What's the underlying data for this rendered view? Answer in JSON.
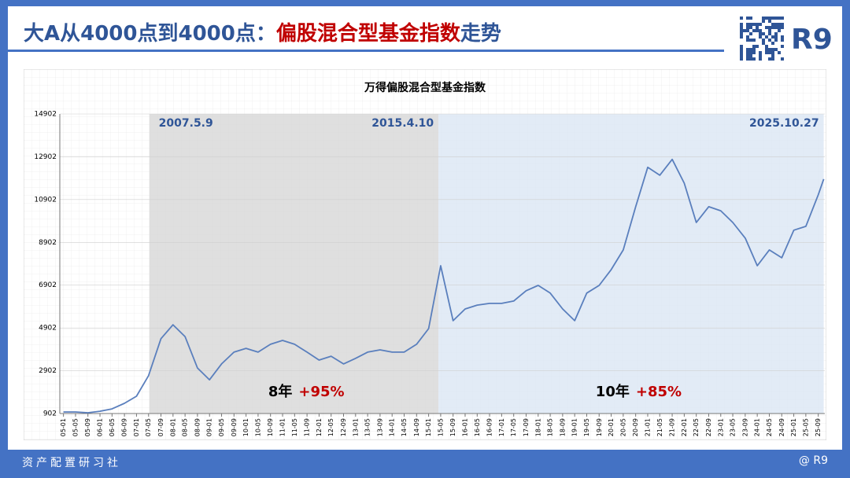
{
  "header": {
    "title_parts": [
      "大A从4000点到4000点：",
      "偏股混合型基金指数",
      "走势"
    ],
    "logo": "R9"
  },
  "footer": {
    "left": "资产配置研习社",
    "right": "@ R9"
  },
  "chart_data": {
    "type": "line",
    "title": "万得偏股混合型基金指数",
    "color": "#5a7fbd",
    "grid": true,
    "x": [
      2005,
      2005.33,
      2005.67,
      2006,
      2006.33,
      2006.67,
      2007,
      2007.33,
      2007.67,
      2008,
      2008.33,
      2008.67,
      2009,
      2009.33,
      2009.67,
      2010,
      2010.33,
      2010.67,
      2011,
      2011.33,
      2011.67,
      2012,
      2012.33,
      2012.67,
      2013,
      2013.33,
      2013.67,
      2014,
      2014.33,
      2014.67,
      2015,
      2015.33,
      2015.67,
      2016,
      2016.33,
      2016.67,
      2017,
      2017.33,
      2017.67,
      2018,
      2018.33,
      2018.67,
      2019,
      2019.33,
      2019.67,
      2020,
      2020.33,
      2020.67,
      2021,
      2021.33,
      2021.67,
      2022,
      2022.33,
      2022.67,
      2023,
      2023.33,
      2023.67,
      2024,
      2024.33,
      2024.67,
      2025,
      2025.33,
      2025.67,
      2025.82
    ],
    "values": [
      975,
      975,
      940,
      1010,
      1120,
      1380,
      1710,
      2670,
      4400,
      5050,
      4500,
      3030,
      2480,
      3220,
      3770,
      3950,
      3770,
      4140,
      4320,
      4140,
      3770,
      3400,
      3580,
      3220,
      3480,
      3770,
      3880,
      3770,
      3770,
      4140,
      4870,
      7810,
      5240,
      5790,
      5970,
      6050,
      6050,
      6160,
      6640,
      6890,
      6530,
      5790,
      5240,
      6530,
      6890,
      7630,
      8550,
      10570,
      12410,
      12040,
      12780,
      11670,
      9830,
      10570,
      10380,
      9830,
      9100,
      7810,
      8550,
      8180,
      9470,
      9650,
      11120,
      11860
    ],
    "xlim": [
      2004.9,
      2025.85
    ],
    "xticks": [
      {
        "value": 2005,
        "label": "05-01"
      },
      {
        "value": 2005.33,
        "label": "05-05"
      },
      {
        "value": 2005.67,
        "label": "05-09"
      },
      {
        "value": 2006,
        "label": "06-01"
      },
      {
        "value": 2006.33,
        "label": "06-05"
      },
      {
        "value": 2006.67,
        "label": "06-09"
      },
      {
        "value": 2007,
        "label": "07-01"
      },
      {
        "value": 2007.33,
        "label": "07-05"
      },
      {
        "value": 2007.67,
        "label": "07-09"
      },
      {
        "value": 2008,
        "label": "08-01"
      },
      {
        "value": 2008.33,
        "label": "08-05"
      },
      {
        "value": 2008.67,
        "label": "08-09"
      },
      {
        "value": 2009,
        "label": "09-01"
      },
      {
        "value": 2009.33,
        "label": "09-05"
      },
      {
        "value": 2009.67,
        "label": "09-09"
      },
      {
        "value": 2010,
        "label": "10-01"
      },
      {
        "value": 2010.33,
        "label": "10-05"
      },
      {
        "value": 2010.67,
        "label": "10-09"
      },
      {
        "value": 2011,
        "label": "11-01"
      },
      {
        "value": 2011.33,
        "label": "11-05"
      },
      {
        "value": 2011.67,
        "label": "11-09"
      },
      {
        "value": 2012,
        "label": "12-01"
      },
      {
        "value": 2012.33,
        "label": "12-05"
      },
      {
        "value": 2012.67,
        "label": "12-09"
      },
      {
        "value": 2013,
        "label": "13-01"
      },
      {
        "value": 2013.33,
        "label": "13-05"
      },
      {
        "value": 2013.67,
        "label": "13-09"
      },
      {
        "value": 2014,
        "label": "14-01"
      },
      {
        "value": 2014.33,
        "label": "14-05"
      },
      {
        "value": 2014.67,
        "label": "14-09"
      },
      {
        "value": 2015,
        "label": "15-01"
      },
      {
        "value": 2015.33,
        "label": "15-05"
      },
      {
        "value": 2015.67,
        "label": "15-09"
      },
      {
        "value": 2016,
        "label": "16-01"
      },
      {
        "value": 2016.33,
        "label": "16-05"
      },
      {
        "value": 2016.67,
        "label": "16-09"
      },
      {
        "value": 2017,
        "label": "17-01"
      },
      {
        "value": 2017.33,
        "label": "17-05"
      },
      {
        "value": 2017.67,
        "label": "17-09"
      },
      {
        "value": 2018,
        "label": "18-01"
      },
      {
        "value": 2018.33,
        "label": "18-05"
      },
      {
        "value": 2018.67,
        "label": "18-09"
      },
      {
        "value": 2019,
        "label": "19-01"
      },
      {
        "value": 2019.33,
        "label": "19-05"
      },
      {
        "value": 2019.67,
        "label": "19-09"
      },
      {
        "value": 2020,
        "label": "20-01"
      },
      {
        "value": 2020.33,
        "label": "20-05"
      },
      {
        "value": 2020.67,
        "label": "20-09"
      },
      {
        "value": 2021,
        "label": "21-01"
      },
      {
        "value": 2021.33,
        "label": "21-05"
      },
      {
        "value": 2021.67,
        "label": "21-09"
      },
      {
        "value": 2022,
        "label": "22-01"
      },
      {
        "value": 2022.33,
        "label": "22-05"
      },
      {
        "value": 2022.67,
        "label": "22-09"
      },
      {
        "value": 2023,
        "label": "23-01"
      },
      {
        "value": 2023.33,
        "label": "23-05"
      },
      {
        "value": 2023.67,
        "label": "23-09"
      },
      {
        "value": 2024,
        "label": "24-01"
      },
      {
        "value": 2024.33,
        "label": "24-05"
      },
      {
        "value": 2024.67,
        "label": "24-09"
      },
      {
        "value": 2025,
        "label": "25-01"
      },
      {
        "value": 2025.33,
        "label": "25-05"
      },
      {
        "value": 2025.67,
        "label": "25-09"
      }
    ],
    "ylim": [
      902,
      14902
    ],
    "yticks": [
      902,
      2902,
      4902,
      6902,
      8902,
      10902,
      12902,
      14902
    ],
    "regions": [
      {
        "start": 2007.35,
        "end": 2015.27,
        "color": "#d9d9d9",
        "start_label": "2007.5.9",
        "end_label": "2015.4.10",
        "duration": "8年",
        "change": "+95%"
      },
      {
        "start": 2015.27,
        "end": 2025.82,
        "color": "#dde7f4",
        "end_label": "2025.10.27",
        "duration": "10年",
        "change": "+85%"
      }
    ]
  }
}
